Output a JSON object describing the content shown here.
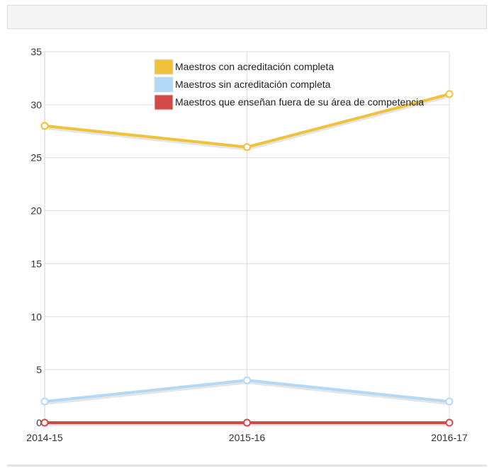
{
  "chart_data": {
    "type": "line",
    "categories": [
      "2014-15",
      "2015-16",
      "2016-17"
    ],
    "ylim": [
      0,
      35
    ],
    "yticks": [
      0,
      5,
      10,
      15,
      20,
      25,
      30,
      35
    ],
    "grid": true,
    "legend_position": "top-center",
    "series": [
      {
        "name": "Maestros con acreditación completa",
        "values": [
          28,
          26,
          31
        ],
        "color": "#f0c23b"
      },
      {
        "name": "Maestros sin acreditación completa",
        "values": [
          2,
          4,
          2
        ],
        "color": "#b3d9f7"
      },
      {
        "name": "Maestros que enseñan fuera de su área de competencia",
        "values": [
          0,
          0,
          0
        ],
        "color": "#d04a48"
      }
    ]
  }
}
